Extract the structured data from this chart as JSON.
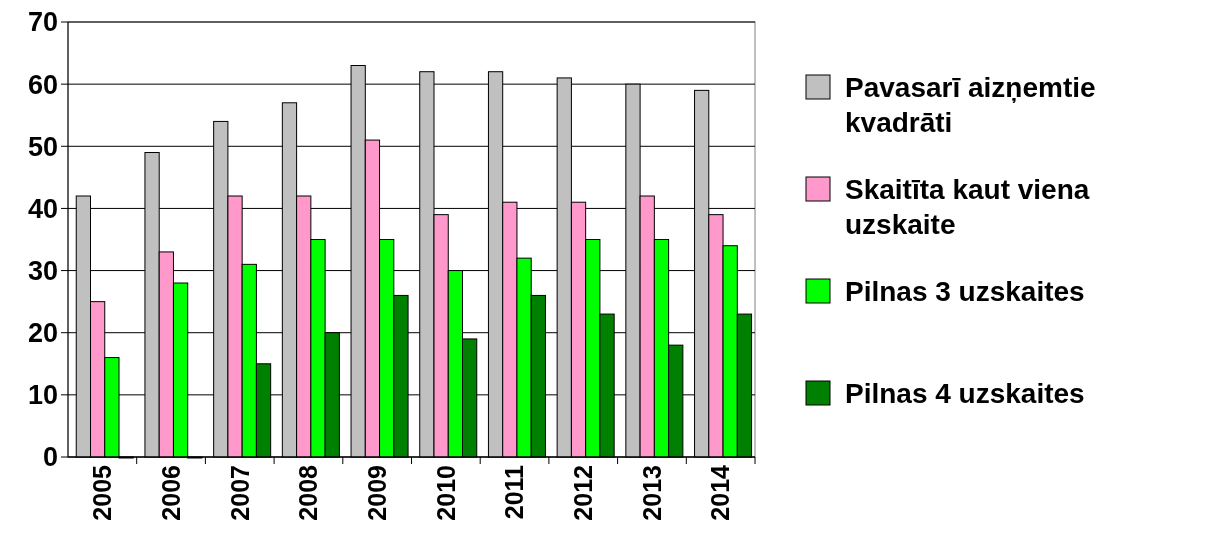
{
  "chart_data": {
    "type": "bar",
    "categories": [
      "2005",
      "2006",
      "2007",
      "2008",
      "2009",
      "2010",
      "2011",
      "2012",
      "2013",
      "2014"
    ],
    "series": [
      {
        "name": "Pavasarī aizņemtie kvadrāti",
        "color": "#c0c0c0",
        "values": [
          42,
          49,
          54,
          57,
          63,
          62,
          62,
          61,
          60,
          59
        ]
      },
      {
        "name": "Skaitīta kaut viena uzskaite",
        "color": "#ff99cc",
        "values": [
          25,
          33,
          42,
          42,
          51,
          39,
          41,
          41,
          42,
          39
        ]
      },
      {
        "name": "Pilnas 3 uzskaites",
        "color": "#00ff00",
        "values": [
          16,
          28,
          31,
          35,
          35,
          30,
          32,
          35,
          35,
          34
        ]
      },
      {
        "name": "Pilnas 4 uzskaites",
        "color": "#008000",
        "values": [
          0,
          0,
          15,
          20,
          26,
          19,
          26,
          23,
          18,
          23
        ]
      }
    ],
    "ylim": [
      0,
      70
    ],
    "yticks": [
      0,
      10,
      20,
      30,
      40,
      50,
      60,
      70
    ],
    "grid": "y",
    "legend": "right"
  }
}
